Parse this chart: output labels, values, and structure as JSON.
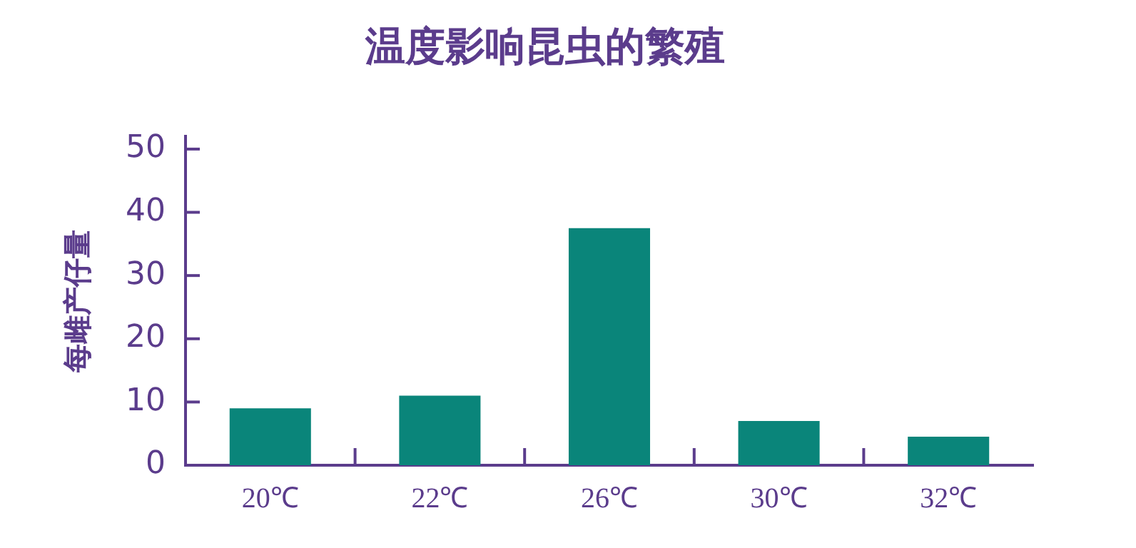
{
  "chart_data": {
    "type": "bar",
    "title": "温度影响昆虫的繁殖",
    "ylabel": "每雌产仔量",
    "categories": [
      "20℃",
      "22℃",
      "26℃",
      "30℃",
      "32℃"
    ],
    "values": [
      9,
      11,
      37.5,
      7,
      4.5
    ],
    "color": "#0a857a",
    "ylim": [
      0,
      52
    ],
    "yticks": [
      0,
      10,
      20,
      30,
      40,
      50
    ],
    "grid": false,
    "legend": false
  }
}
